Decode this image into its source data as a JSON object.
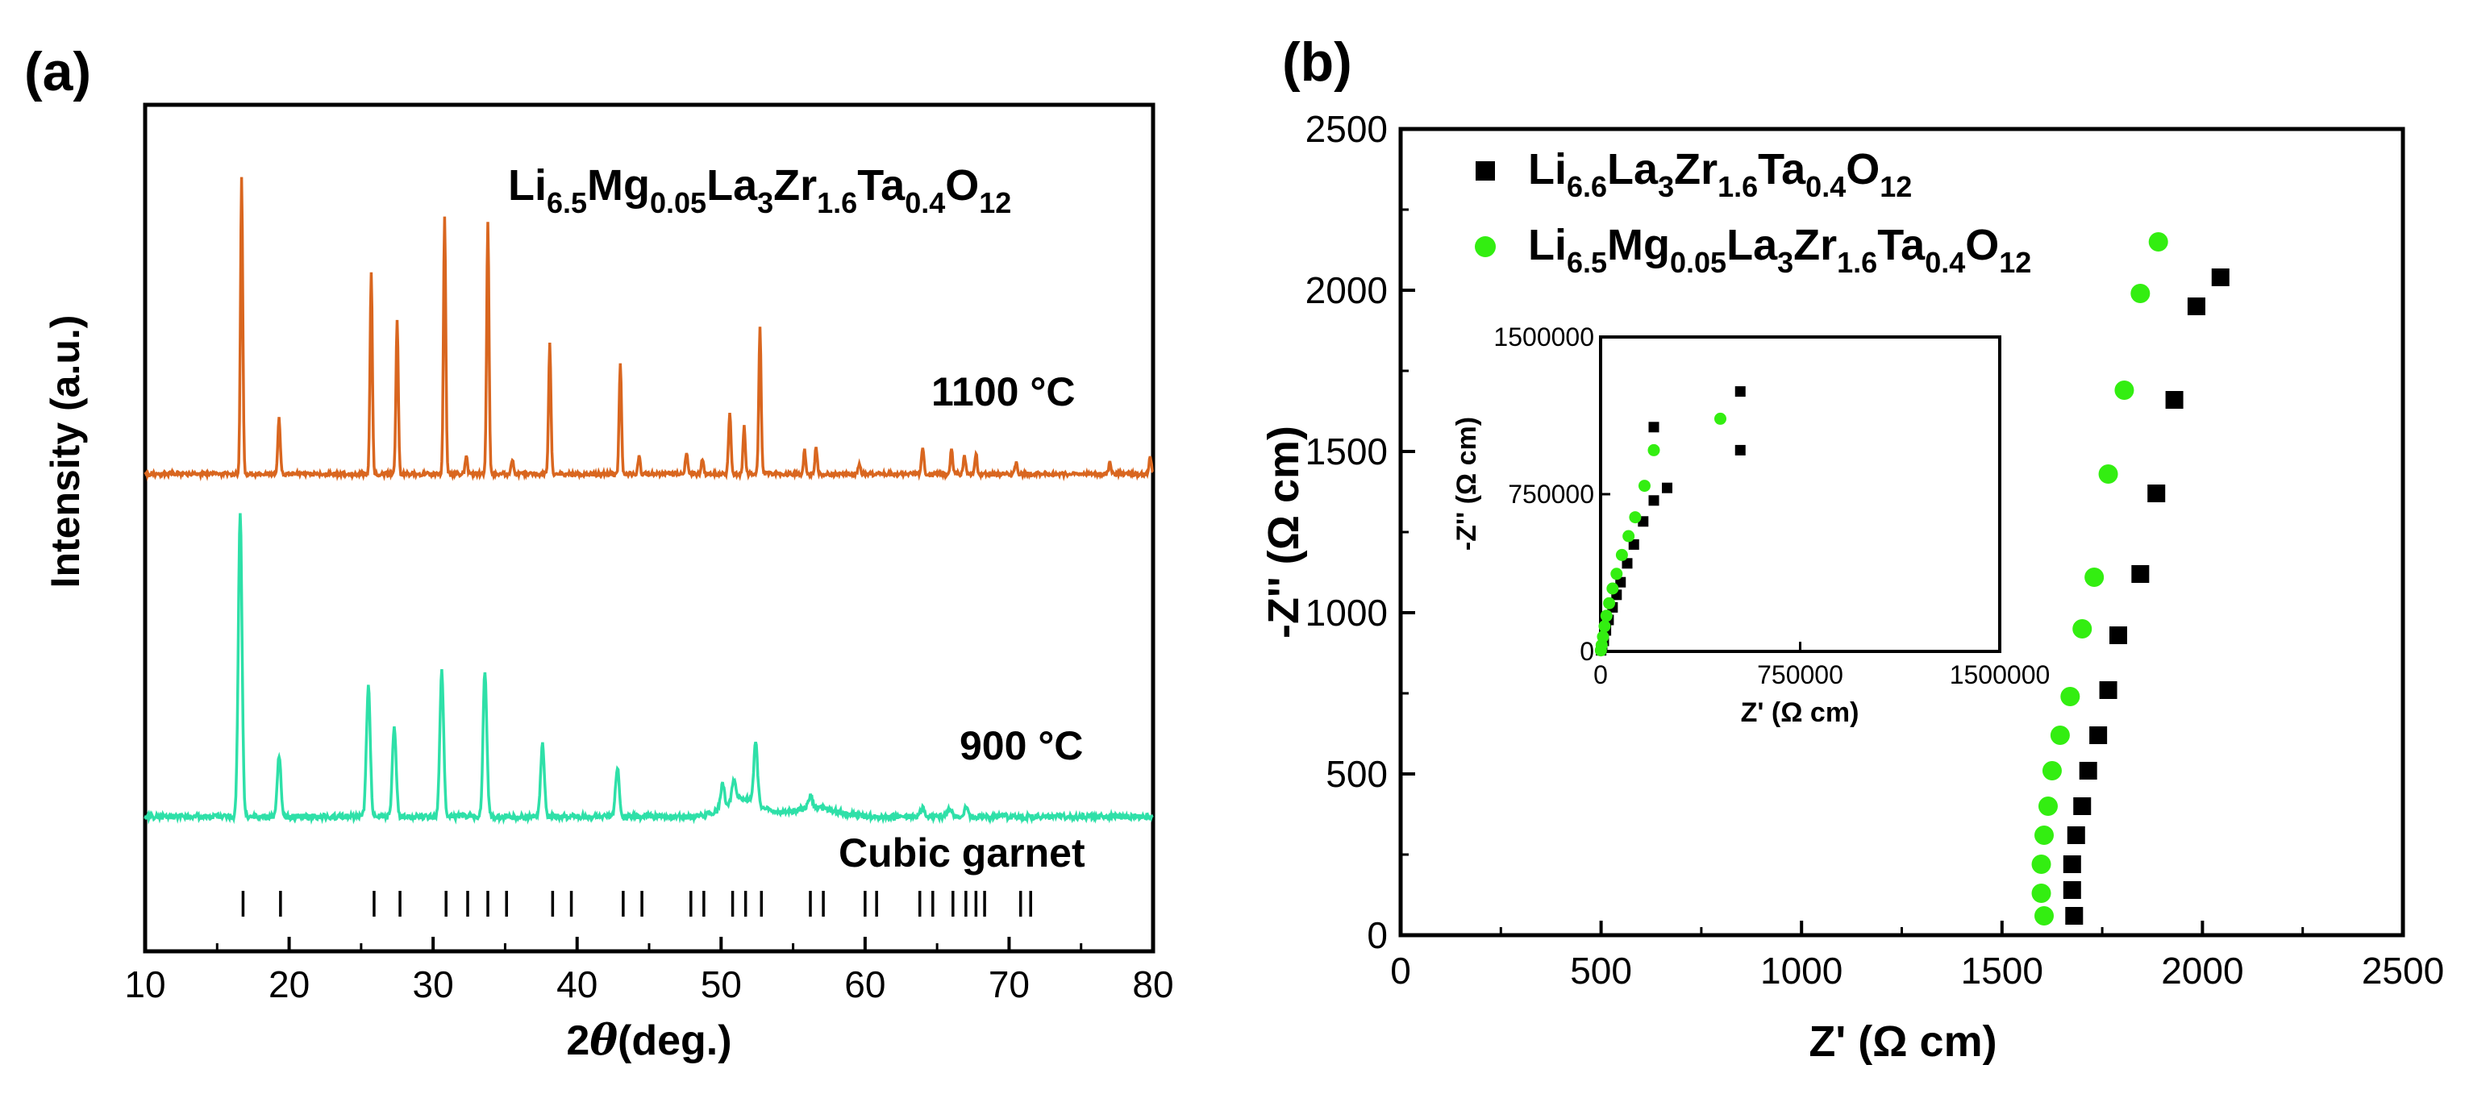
{
  "figure": {
    "panel_a_label": "(a)",
    "panel_b_label": "(b)"
  },
  "chart_data": [
    {
      "type": "line",
      "panel": "(a)",
      "title": "",
      "composition": {
        "base": "Li",
        "parts": [
          {
            "t": "Li",
            "s": "6.5"
          },
          {
            "t": "Mg",
            "s": "0.05"
          },
          {
            "t": "La",
            "s": "3"
          },
          {
            "t": "Zr",
            "s": "1.6"
          },
          {
            "t": "Ta",
            "s": "0.4"
          },
          {
            "t": "O",
            "s": "12"
          }
        ]
      },
      "xlabel": {
        "prefix": "2",
        "theta": "θ",
        "suffix": "(deg.)"
      },
      "ylabel": "Intensity (a.u.)",
      "xlim": [
        10,
        80
      ],
      "xticks": [
        10,
        20,
        30,
        40,
        50,
        60,
        70,
        80
      ],
      "series": [
        {
          "name": "1100 °C",
          "color": "#D9661F",
          "peaks": [
            [
              16.7,
              1.0
            ],
            [
              19.3,
              0.19
            ],
            [
              25.7,
              0.68
            ],
            [
              27.5,
              0.52
            ],
            [
              30.8,
              0.86
            ],
            [
              32.3,
              0.06
            ],
            [
              33.8,
              0.84
            ],
            [
              35.5,
              0.05
            ],
            [
              38.1,
              0.44
            ],
            [
              43.0,
              0.37
            ],
            [
              44.3,
              0.06
            ],
            [
              47.6,
              0.07
            ],
            [
              48.7,
              0.05
            ],
            [
              50.6,
              0.21
            ],
            [
              51.6,
              0.16
            ],
            [
              52.7,
              0.49
            ],
            [
              55.8,
              0.08
            ],
            [
              56.6,
              0.09
            ],
            [
              59.6,
              0.03
            ],
            [
              64.0,
              0.09
            ],
            [
              66.0,
              0.08
            ],
            [
              66.9,
              0.06
            ],
            [
              67.7,
              0.07
            ],
            [
              70.5,
              0.04
            ],
            [
              77.0,
              0.04
            ],
            [
              79.8,
              0.06
            ]
          ]
        },
        {
          "name": "900 °C",
          "color": "#2EE0A8",
          "peaks": [
            [
              16.6,
              1.0
            ],
            [
              19.3,
              0.2
            ],
            [
              25.5,
              0.43
            ],
            [
              27.3,
              0.3
            ],
            [
              30.6,
              0.48
            ],
            [
              33.6,
              0.48
            ],
            [
              37.6,
              0.24
            ],
            [
              42.8,
              0.16
            ],
            [
              50.1,
              0.08
            ],
            [
              50.9,
              0.07
            ],
            [
              52.4,
              0.2
            ],
            [
              56.2,
              0.04
            ],
            [
              64.0,
              0.03
            ],
            [
              65.9,
              0.03
            ],
            [
              67.0,
              0.03
            ]
          ]
        }
      ],
      "reference": {
        "label": "Cubic garnet",
        "positions": [
          16.8,
          19.4,
          25.9,
          27.7,
          30.9,
          32.4,
          33.8,
          35.1,
          38.3,
          39.6,
          43.2,
          44.5,
          47.9,
          48.8,
          50.8,
          51.7,
          52.8,
          56.2,
          57.1,
          60.0,
          60.8,
          63.8,
          64.7,
          66.1,
          67.0,
          67.7,
          68.3,
          70.8,
          71.5,
          80.0
        ]
      }
    },
    {
      "type": "scatter",
      "panel": "(b)",
      "xlabel": {
        "main": "Z'",
        "unit": "(Ω cm)"
      },
      "ylabel": {
        "main": "-Z''",
        "unit": "(Ω cm)"
      },
      "xlim": [
        0,
        2500
      ],
      "ylim": [
        0,
        2500
      ],
      "xticks": [
        0,
        500,
        1000,
        1500,
        2000,
        2500
      ],
      "yticks": [
        0,
        500,
        1000,
        1500,
        2000,
        2500
      ],
      "legend_position": "top-left",
      "series": [
        {
          "name": "Li6.6La3Zr1.6Ta0.4O12",
          "formula": [
            {
              "t": "Li",
              "s": "6.6"
            },
            {
              "t": "La",
              "s": "3"
            },
            {
              "t": "Zr",
              "s": "1.6"
            },
            {
              "t": "Ta",
              "s": "0.4"
            },
            {
              "t": "O",
              "s": "12"
            }
          ],
          "marker": "square",
          "color": "#000000",
          "x": [
            1680,
            1675,
            1675,
            1685,
            1700,
            1715,
            1740,
            1765,
            1790,
            1845,
            1885,
            1930,
            1985,
            2045
          ],
          "y": [
            60,
            140,
            220,
            310,
            400,
            510,
            620,
            760,
            930,
            1120,
            1370,
            1660,
            1950,
            2040
          ]
        },
        {
          "name": "Li6.5Mg0.05La3Zr1.6Ta0.4O12",
          "formula": [
            {
              "t": "Li",
              "s": "6.5"
            },
            {
              "t": "Mg",
              "s": "0.05"
            },
            {
              "t": "La",
              "s": "3"
            },
            {
              "t": "Zr",
              "s": "1.6"
            },
            {
              "t": "Ta",
              "s": "0.4"
            },
            {
              "t": "O",
              "s": "12"
            }
          ],
          "marker": "circle",
          "color": "#33EE11",
          "x": [
            1605,
            1598,
            1598,
            1605,
            1615,
            1625,
            1645,
            1670,
            1700,
            1730,
            1765,
            1805,
            1845,
            1890
          ],
          "y": [
            60,
            130,
            220,
            310,
            400,
            510,
            620,
            740,
            950,
            1110,
            1430,
            1690,
            1990,
            2150
          ]
        }
      ],
      "inset": {
        "xlabel": {
          "main": "Z'",
          "unit": "(Ω cm)"
        },
        "ylabel": {
          "main": "-Z''",
          "unit": "(Ω cm)"
        },
        "xlim": [
          0,
          1500000
        ],
        "ylim": [
          0,
          1500000
        ],
        "xticks": [
          0,
          750000,
          1500000
        ],
        "yticks": [
          0,
          750000,
          1500000
        ],
        "series": [
          {
            "name": "Li6.6La3Zr1.6Ta0.4O12",
            "marker": "square",
            "color": "#000000",
            "x": [
              2000,
              6000,
              12000,
              20000,
              30000,
              45000,
              60000,
              75000,
              100000,
              125000,
              160000,
              200000,
              250000,
              200000,
              525000,
              525000
            ],
            "y": [
              5000,
              20000,
              50000,
              100000,
              150000,
              210000,
              270000,
              330000,
              420000,
              510000,
              620000,
              720000,
              780000,
              1070000,
              960000,
              1240000
            ]
          },
          {
            "name": "Li6.5Mg0.05La3Zr1.6Ta0.4O12",
            "marker": "circle",
            "color": "#33EE11",
            "x": [
              1000,
              4000,
              9000,
              15000,
              22000,
              32000,
              45000,
              60000,
              80000,
              105000,
              130000,
              165000,
              200000,
              450000
            ],
            "y": [
              5000,
              30000,
              70000,
              120000,
              170000,
              230000,
              300000,
              370000,
              460000,
              550000,
              640000,
              790000,
              960000,
              1110000
            ]
          }
        ]
      }
    }
  ]
}
